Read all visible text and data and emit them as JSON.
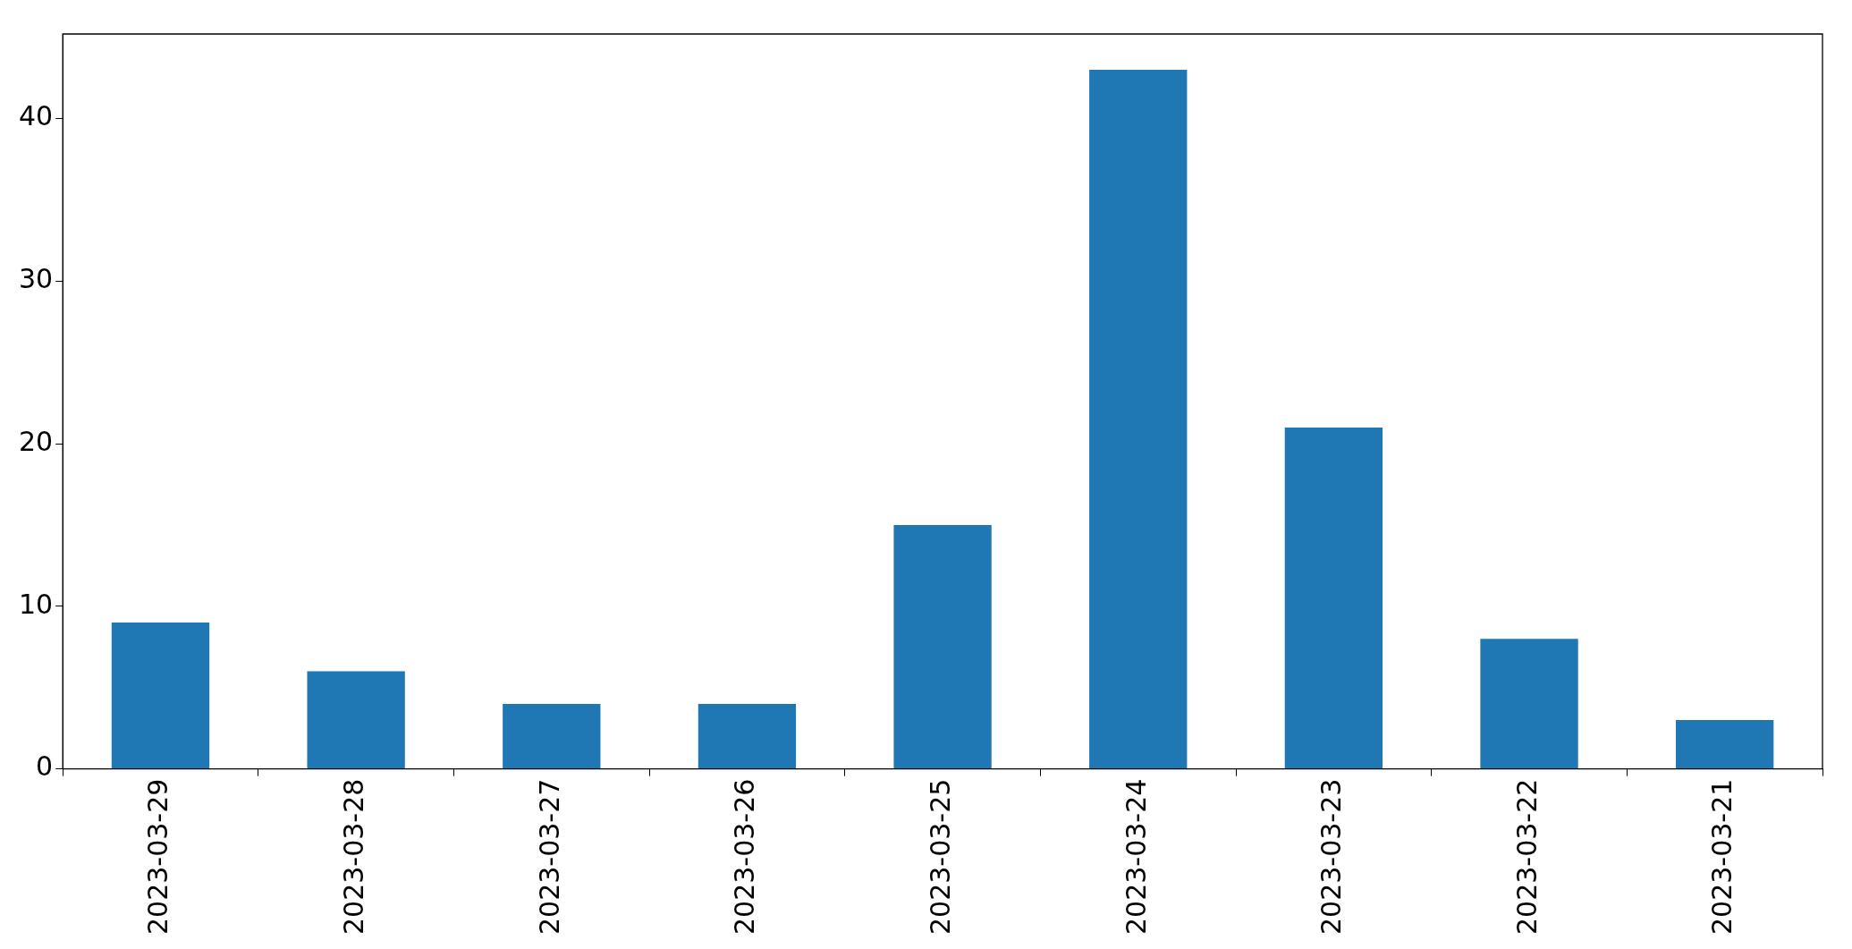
{
  "chart_data": {
    "type": "bar",
    "categories": [
      "2023-03-29",
      "2023-03-28",
      "2023-03-27",
      "2023-03-26",
      "2023-03-25",
      "2023-03-24",
      "2023-03-23",
      "2023-03-22",
      "2023-03-21"
    ],
    "values": [
      9,
      6,
      4,
      4,
      15,
      43,
      21,
      8,
      3
    ],
    "color": "#1f77b4",
    "ylim": [
      0,
      45.2
    ],
    "yticks": [
      0,
      10,
      20,
      30,
      40
    ],
    "grid": false,
    "legend": false
  }
}
